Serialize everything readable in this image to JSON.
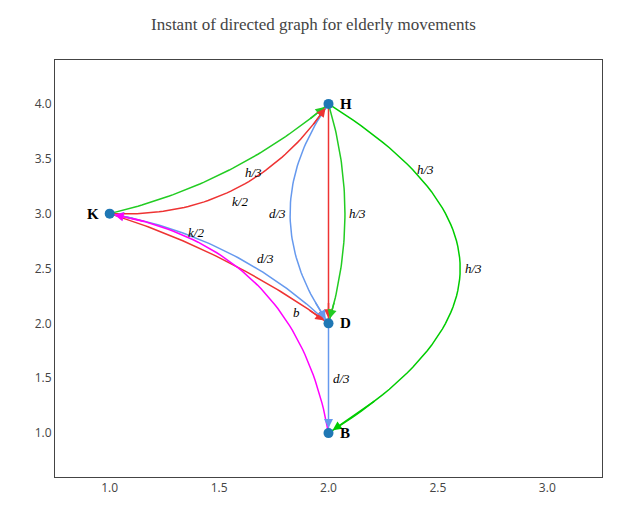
{
  "chart_data": {
    "type": "network",
    "title": "Instant of directed graph for elderly movements",
    "node_color": "#1f77b4",
    "nodes": [
      {
        "name": "K",
        "x": 1,
        "y": 3
      },
      {
        "name": "H",
        "x": 2,
        "y": 4
      },
      {
        "name": "D",
        "x": 2,
        "y": 2
      },
      {
        "name": "B",
        "x": 2,
        "y": 1
      }
    ],
    "edges": [
      {
        "from": "H",
        "to": "B",
        "color": "#00cc00",
        "labels": [
          "h/3",
          "h/3"
        ]
      },
      {
        "from": "K",
        "to": "H",
        "color": "#22cc22",
        "labels": [
          "h/3"
        ]
      },
      {
        "from": "K",
        "to": "H",
        "color": "#ee3333",
        "labels": [
          "k/2"
        ]
      },
      {
        "from": "K",
        "to": "D",
        "color": "#ee3333",
        "labels": [
          "k/2"
        ]
      },
      {
        "from": "H",
        "to": "D",
        "color": "#ee3333",
        "labels": []
      },
      {
        "from": "D",
        "to": "K",
        "color": "#6699ee",
        "labels": [
          "d/3"
        ]
      },
      {
        "from": "H",
        "to": "D",
        "color": "#6699ee",
        "labels": [
          "d/3"
        ]
      },
      {
        "from": "H",
        "to": "D",
        "color": "#22cc22",
        "labels": [
          "h/3"
        ]
      },
      {
        "from": "D",
        "to": "B",
        "color": "#6699ee",
        "labels": [
          "d/3"
        ]
      },
      {
        "from": "B",
        "to": "K",
        "color": "#ff00ff",
        "labels": [
          "b"
        ]
      }
    ],
    "xlim": [
      0.75,
      3.25
    ],
    "ylim": [
      0.6,
      4.4
    ],
    "xticks": [
      {
        "value": 1.0,
        "label": "1.0"
      },
      1.5,
      {
        "value": 2.0,
        "label": "2.0"
      },
      2.5,
      {
        "value": 3.0,
        "label": "3.0"
      }
    ],
    "yticks": [
      {
        "value": 1.0,
        "label": "1.0"
      },
      1.5,
      {
        "value": 2.0,
        "label": "2.0"
      },
      2.5,
      {
        "value": 3.0,
        "label": "3.0"
      },
      3.5,
      {
        "value": 4.0,
        "label": "4.0"
      }
    ],
    "grid": false
  }
}
